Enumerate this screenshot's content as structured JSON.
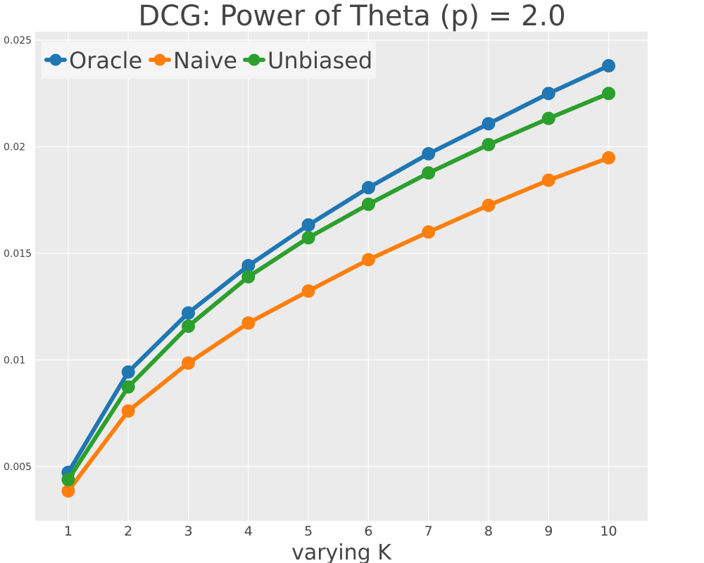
{
  "chart_data": {
    "type": "line",
    "title": "DCG: Power of Theta (p) = 2.0",
    "xlabel": "varying K",
    "ylabel": "",
    "x": [
      1,
      2,
      3,
      4,
      5,
      6,
      7,
      8,
      9,
      10
    ],
    "x_tick_labels": [
      "1",
      "2",
      "3",
      "4",
      "5",
      "6",
      "7",
      "8",
      "9",
      "10"
    ],
    "xlim": [
      0.45,
      10.65
    ],
    "ylim": [
      0.00245,
      0.0254
    ],
    "y_ticks": [
      0.005,
      0.01,
      0.015,
      0.02,
      0.025
    ],
    "y_tick_labels": [
      "0.005",
      "0.01",
      "0.015",
      "0.02",
      "0.025"
    ],
    "grid": true,
    "legend_position": "top-left",
    "series": [
      {
        "name": "Oracle",
        "color": "#1f77b4",
        "values": [
          0.00472,
          0.00943,
          0.0122,
          0.01442,
          0.01633,
          0.01808,
          0.01967,
          0.02108,
          0.0225,
          0.0238
        ]
      },
      {
        "name": "Naive",
        "color": "#ff7f0e",
        "values": [
          0.00385,
          0.0076,
          0.00985,
          0.01173,
          0.01323,
          0.0147,
          0.016,
          0.01725,
          0.01843,
          0.01948
        ]
      },
      {
        "name": "Unbiased",
        "color": "#2ca02c",
        "values": [
          0.00438,
          0.00873,
          0.01158,
          0.0139,
          0.01573,
          0.0173,
          0.01877,
          0.0201,
          0.02133,
          0.0225
        ]
      }
    ]
  }
}
